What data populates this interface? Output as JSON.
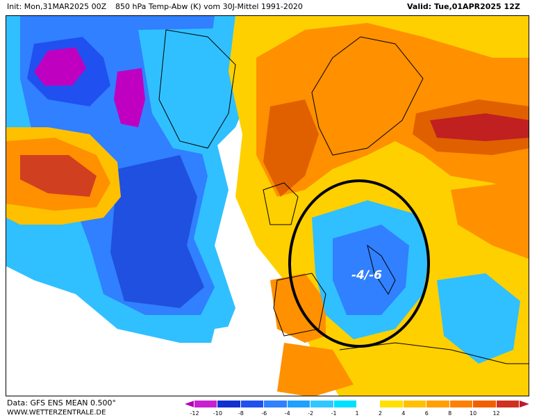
{
  "header": {
    "init_label": "Init: Mon,31MAR2025 00Z",
    "title": "850 hPa Temp-Abw (K) vom 30J-Mittel 1991-2020",
    "valid_label": "Valid: Tue,01APR2025 12Z"
  },
  "map": {
    "annotation": "-4/-6",
    "highlight": "black ellipse around western Mediterranean cold anomaly",
    "colors": {
      "ocean_neutral": "#ffffff",
      "deep_purple": "#c000c0",
      "blue_dark": "#2040e0",
      "blue_mid": "#3070ff",
      "blue_light": "#30c0ff",
      "cyan": "#00e0ff",
      "yellow": "#ffd000",
      "orange": "#ff9000",
      "dark_orange": "#e06000",
      "red": "#c02020"
    }
  },
  "footer": {
    "data_label": "Data: GFS ENS MEAN 0.500°",
    "site_label": "WWW.WETTERZENTRALE.DE"
  },
  "legend": {
    "boxes": [
      {
        "color": "#b000b0"
      },
      {
        "color": "#c820d0"
      },
      {
        "color": "#1030d0"
      },
      {
        "color": "#2050f0"
      },
      {
        "color": "#3080ff"
      },
      {
        "color": "#20a0ff"
      },
      {
        "color": "#30c8ff"
      },
      {
        "color": "#00e0ff"
      },
      {
        "color": "#ffffff"
      },
      {
        "color": "#ffe000"
      },
      {
        "color": "#ffc000"
      },
      {
        "color": "#ffa000"
      },
      {
        "color": "#ff8000"
      },
      {
        "color": "#f06000"
      },
      {
        "color": "#d03020"
      },
      {
        "color": "#c01830"
      }
    ],
    "ticks": [
      "-12",
      "-10",
      "-8",
      "-6",
      "-4",
      "-2",
      "-1",
      "1",
      "2",
      "4",
      "6",
      "8",
      "10",
      "12"
    ]
  }
}
